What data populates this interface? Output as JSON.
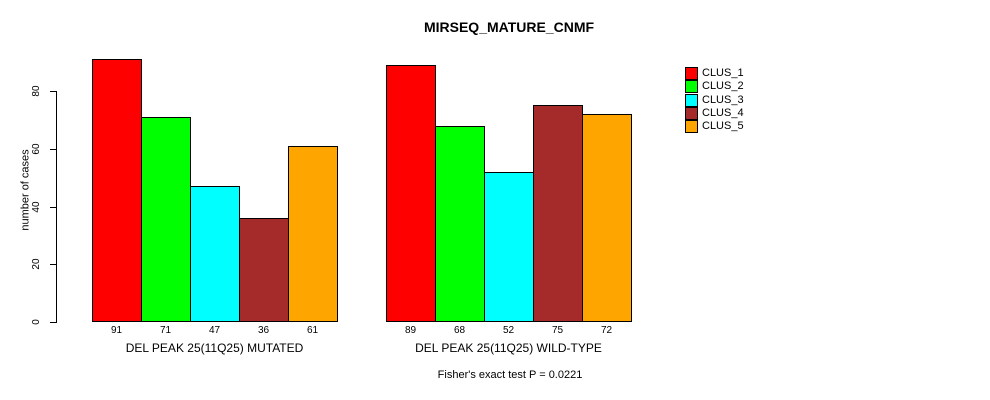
{
  "chart_data": {
    "type": "bar",
    "title": "MIRSEQ_MATURE_CNMF",
    "xlabel": "",
    "ylabel": "number of cases",
    "ylim": [
      0,
      80
    ],
    "yticks": [
      0,
      20,
      40,
      60,
      80
    ],
    "grid": false,
    "background": "#FFFFFF",
    "legend_position": "right-outside",
    "categories": [
      "DEL PEAK 25(11Q25) MUTATED",
      "DEL PEAK 25(11Q25) WILD-TYPE"
    ],
    "series": [
      {
        "name": "CLUS_1",
        "color": "#FF0000",
        "values": [
          91,
          89
        ]
      },
      {
        "name": "CLUS_2",
        "color": "#00FF00",
        "values": [
          71,
          68
        ]
      },
      {
        "name": "CLUS_3",
        "color": "#00FFFF",
        "values": [
          47,
          52
        ]
      },
      {
        "name": "CLUS_4",
        "color": "#A52A2A",
        "values": [
          36,
          75
        ]
      },
      {
        "name": "CLUS_5",
        "color": "#FFA500",
        "values": [
          61,
          72
        ]
      }
    ],
    "bar_value_labels": true,
    "annotation": "Fisher's exact test P = 0.0221"
  }
}
